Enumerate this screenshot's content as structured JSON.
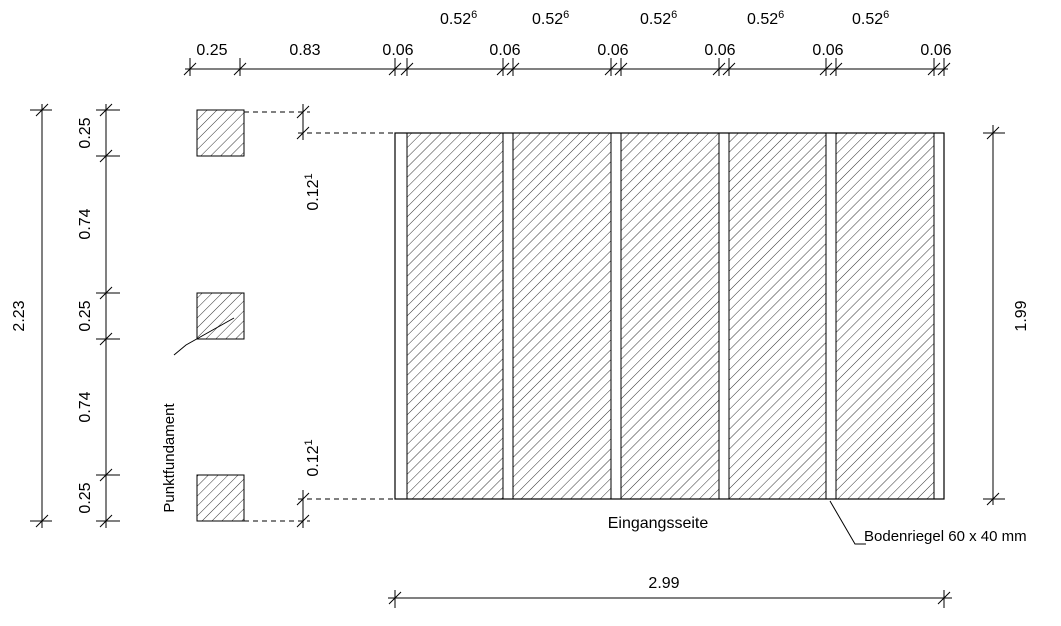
{
  "top_dimensions": {
    "segments": [
      "0.25",
      "0.83",
      "0.06",
      "0.06",
      "0.06",
      "0.06",
      "0.06",
      "0.06"
    ],
    "board_width": "0.52",
    "board_width_sup": "6"
  },
  "left_dimensions": {
    "total": "2.23",
    "segments": [
      "0.25",
      "0.74",
      "0.25",
      "0.74",
      "0.25"
    ]
  },
  "footing_offset": {
    "value": "0.12",
    "sup": "1"
  },
  "right_dimension": "1.99",
  "bottom_dimension": "2.99",
  "labels": {
    "point_footing": "Punktfundament",
    "entrance_side": "Eingangsseite",
    "floor_beam": "Bodenriegel 60 x 40 mm"
  }
}
